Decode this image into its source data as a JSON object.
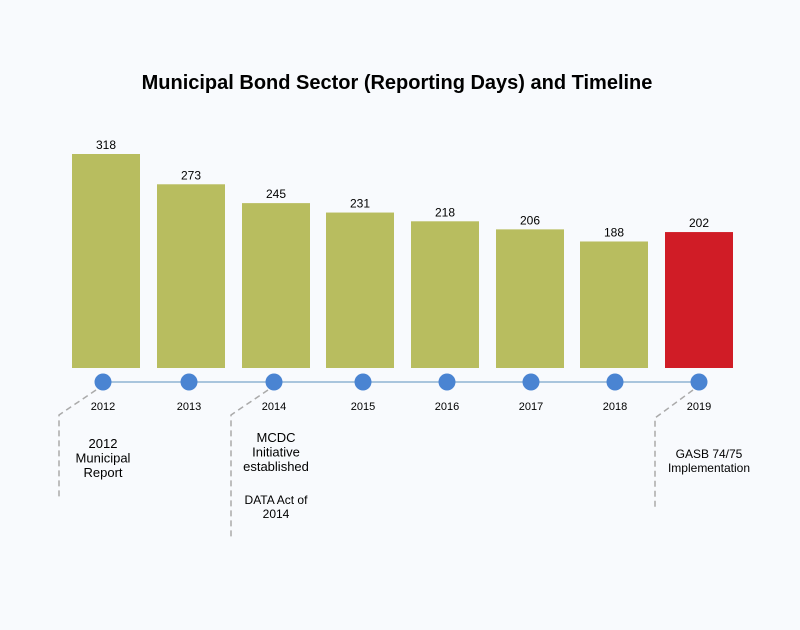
{
  "chart_data": {
    "type": "bar",
    "title": "Municipal Bond Sector (Reporting Days) and Timeline",
    "categories": [
      "2012",
      "2013",
      "2014",
      "2015",
      "2016",
      "2017",
      "2018",
      "2019"
    ],
    "values": [
      318,
      273,
      245,
      231,
      218,
      206,
      188,
      202
    ],
    "xlabel": "",
    "ylabel": "",
    "ylim": [
      0,
      318
    ],
    "grid": false,
    "colors": {
      "bar": "#b8bd5f",
      "highlight": "#d01c26",
      "timeline_line": "#a9c5dd",
      "timeline_dot": "#4a84d2",
      "connector": "#aaaaaa"
    },
    "highlight_category": "2019",
    "annotations": [
      {
        "year": "2012",
        "lines": [
          "2012",
          "Municipal",
          "Report"
        ]
      },
      {
        "year": "2014",
        "lines": [
          "MCDC",
          "Initiative",
          "established"
        ]
      },
      {
        "year": "2014",
        "lines": [
          "DATA Act of",
          "2014"
        ]
      },
      {
        "year": "2019",
        "lines": [
          "GASB 74/75",
          "Implementation"
        ]
      }
    ]
  }
}
